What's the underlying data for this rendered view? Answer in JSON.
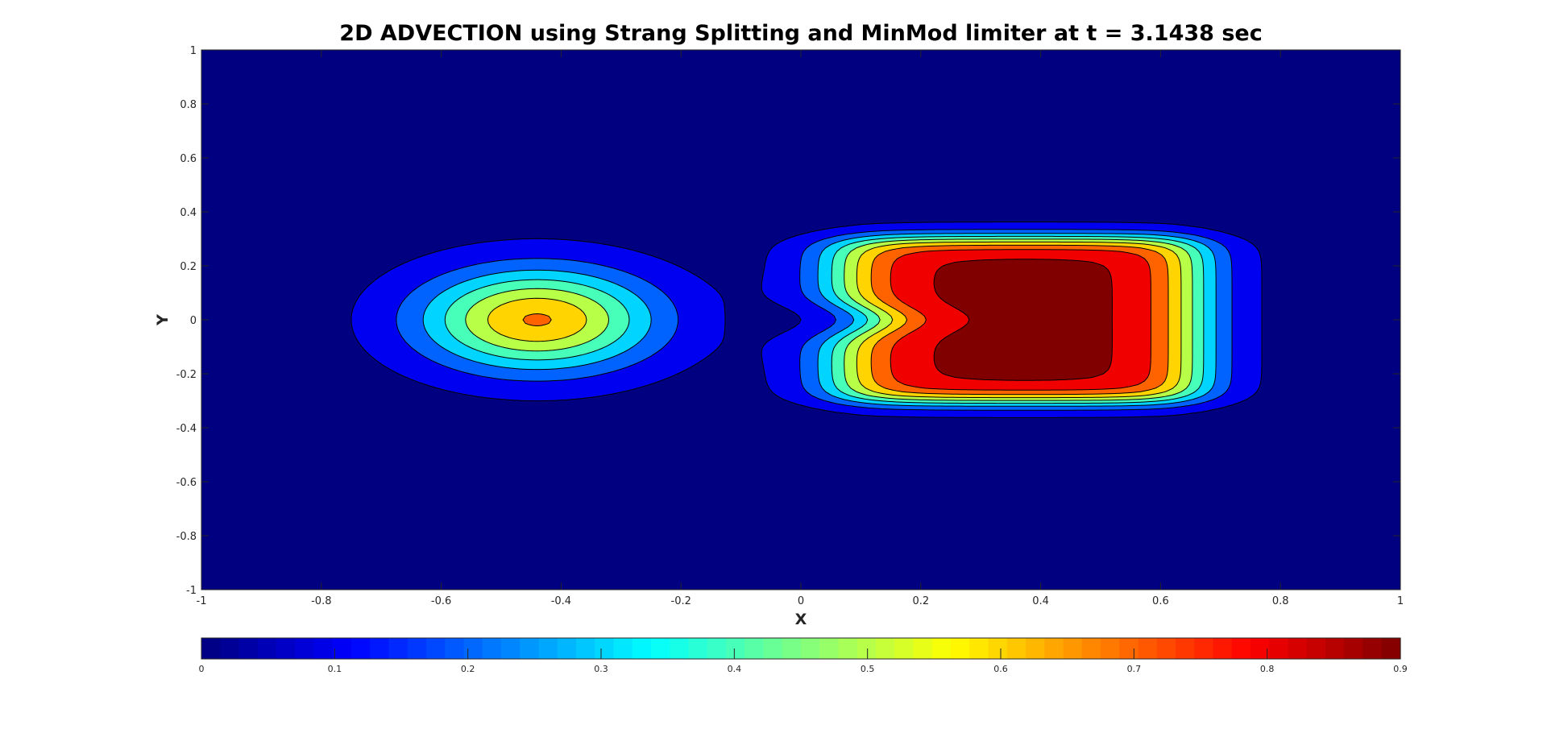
{
  "chart_data": {
    "type": "contourf",
    "title": "2D ADVECTION using Strang Splitting and MinMod limiter at t = 3.1438 sec",
    "xlabel": "X",
    "ylabel": "Y",
    "xlim": [
      -1,
      1
    ],
    "ylim": [
      -1,
      1
    ],
    "xticks": [
      -1,
      -0.8,
      -0.6,
      -0.4,
      -0.2,
      0,
      0.2,
      0.4,
      0.6,
      0.8,
      1
    ],
    "yticks": [
      -1,
      -0.8,
      -0.6,
      -0.4,
      -0.2,
      0,
      0.2,
      0.4,
      0.6,
      0.8,
      1
    ],
    "colormap": "jet",
    "grid": false,
    "colorbar": {
      "location": "south",
      "limits": [
        0,
        0.9
      ],
      "ticks": [
        0,
        0.1,
        0.2,
        0.3,
        0.4,
        0.5,
        0.6,
        0.7,
        0.8,
        0.9
      ]
    },
    "contour_levels": [
      0.05,
      0.15,
      0.25,
      0.35,
      0.45,
      0.55,
      0.65,
      0.75,
      0.85
    ],
    "features": [
      {
        "shape": "gaussian-blob",
        "center": [
          -0.44,
          0.0
        ],
        "x_extent": [
          -0.76,
          -0.14
        ],
        "y_extent": [
          -0.3,
          0.3
        ],
        "peak": 0.66
      },
      {
        "shape": "square-pulse",
        "center": [
          0.36,
          0.0
        ],
        "x_extent": [
          0.04,
          0.67
        ],
        "y_extent": [
          -0.32,
          0.32
        ],
        "plateau": [
          0.15,
          0.54
        ],
        "peak": 0.88
      }
    ]
  }
}
